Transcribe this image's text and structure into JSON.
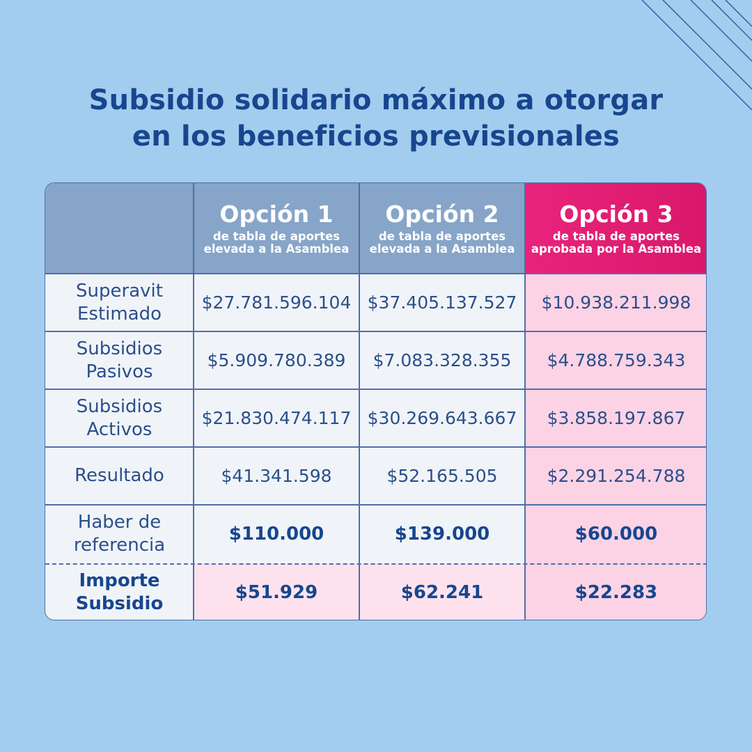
{
  "title": {
    "line1": "Subsidio solidario máximo a otorgar",
    "line2": "en los beneficios previsionales"
  },
  "columns": [
    {
      "option": "Opción 1",
      "sub1": "de tabla de aportes",
      "sub2": "elevada a la Asamblea"
    },
    {
      "option": "Opción 2",
      "sub1": "de tabla de aportes",
      "sub2": "elevada a la Asamblea"
    },
    {
      "option": "Opción 3",
      "sub1": "de tabla de aportes",
      "sub2": "aprobada por la Asamblea"
    }
  ],
  "rows": [
    {
      "label1": "Superavit",
      "label2": "Estimado",
      "values": [
        "$27.781.596.104",
        "$37.405.137.527",
        "$10.938.211.998"
      ]
    },
    {
      "label1": "Subsidios",
      "label2": "Pasivos",
      "values": [
        "$5.909.780.389",
        "$7.083.328.355",
        "$4.788.759.343"
      ]
    },
    {
      "label1": "Subsidios",
      "label2": "Activos",
      "values": [
        "$21.830.474.117",
        "$30.269.643.667",
        "$3.858.197.867"
      ]
    },
    {
      "label1": "Resultado",
      "label2": "",
      "values": [
        "$41.341.598",
        "$52.165.505",
        "$2.291.254.788"
      ]
    },
    {
      "label1": "Haber de",
      "label2": "referencia",
      "values": [
        "$110.000",
        "$139.000",
        "$60.000"
      ]
    },
    {
      "label1": "Importe",
      "label2": "Subsidio",
      "values": [
        "$51.929",
        "$62.241",
        "$22.283"
      ]
    }
  ],
  "colors": {
    "background": "#a3cdee",
    "header": "#86a5c8",
    "highlight": "#e8237c",
    "highlight_cell": "#fbd3e5",
    "text": "#17468f"
  }
}
